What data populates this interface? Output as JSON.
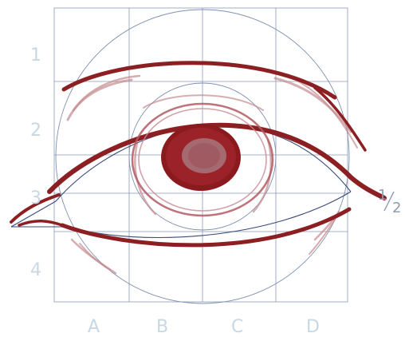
{
  "diagram": {
    "row_labels": [
      "1",
      "2",
      "3",
      "4"
    ],
    "column_labels": [
      "A",
      "B",
      "C",
      "D"
    ],
    "fraction": {
      "numerator": "1",
      "denominator": "2"
    },
    "colors": {
      "sketch": "#8c1f22",
      "iris": "#8b1a1f",
      "pupil_highlight": "#a8898d",
      "grid": "#8a9ab8",
      "labels": "#c7d8e3"
    }
  }
}
